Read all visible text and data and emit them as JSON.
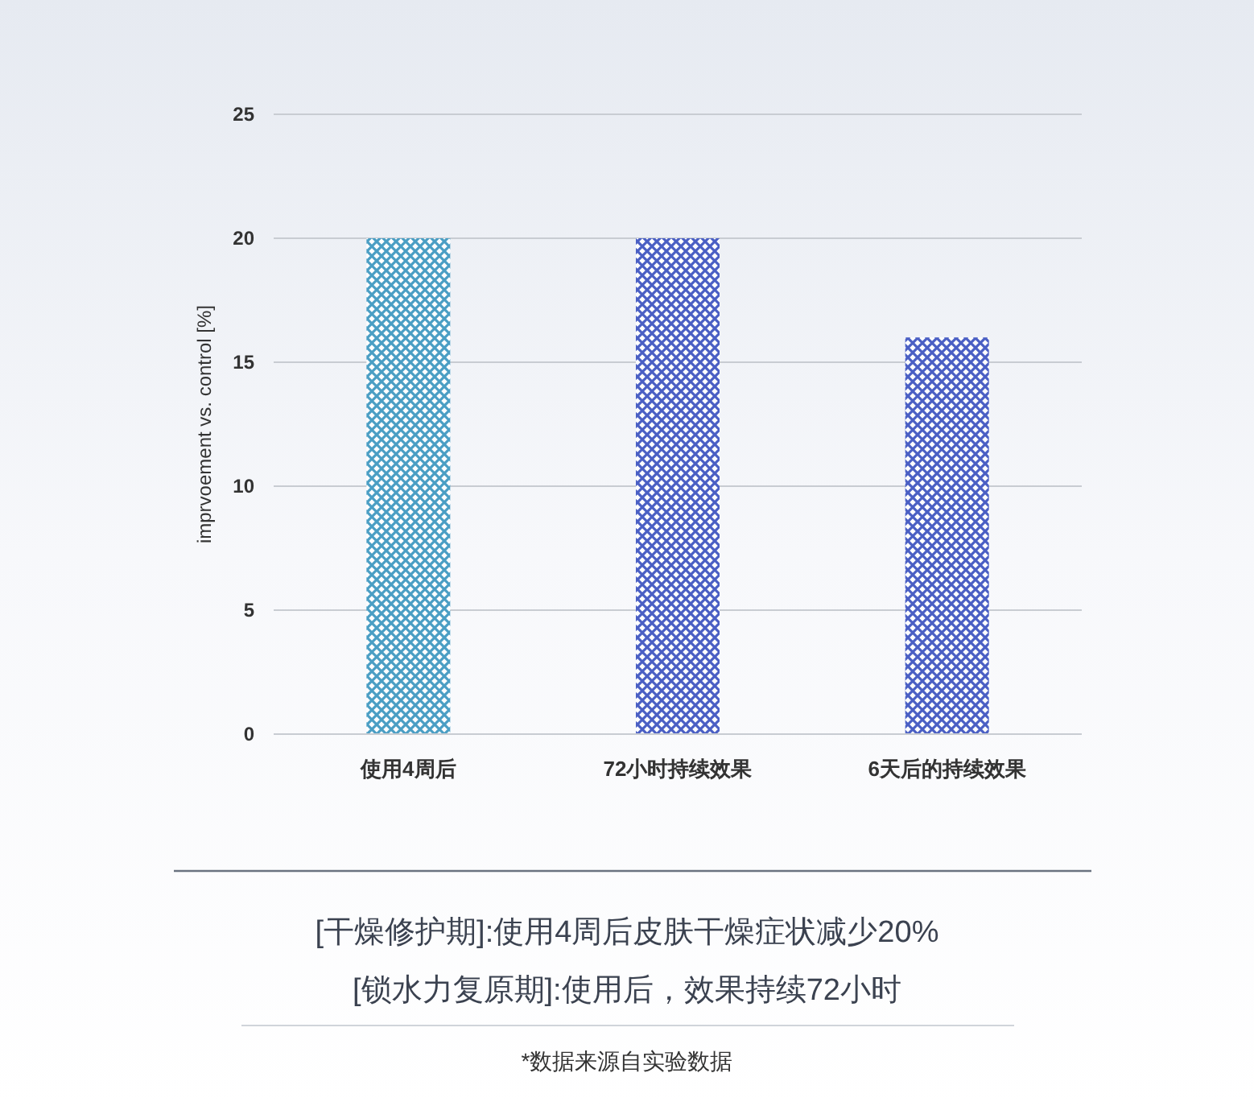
{
  "chart_data": {
    "type": "bar",
    "categories": [
      "使用4周后",
      "72小时持续效果",
      "6天后的持续效果"
    ],
    "values": [
      20,
      20,
      16
    ],
    "colors": [
      "#4a9ec4",
      "#4a5fc4",
      "#4a5fc4"
    ],
    "ylabel": "imprvoement vs. control [%]",
    "ylim": [
      0,
      25
    ],
    "yticks": [
      0,
      5,
      10,
      15,
      20,
      25
    ],
    "grid": "y",
    "annotations": [
      "[干燥修护期]:使用4周后皮肤干燥症状减少20%",
      "[锁水力复原期]:使用后，效果持续72小时",
      "*数据来源自实验数据"
    ]
  }
}
